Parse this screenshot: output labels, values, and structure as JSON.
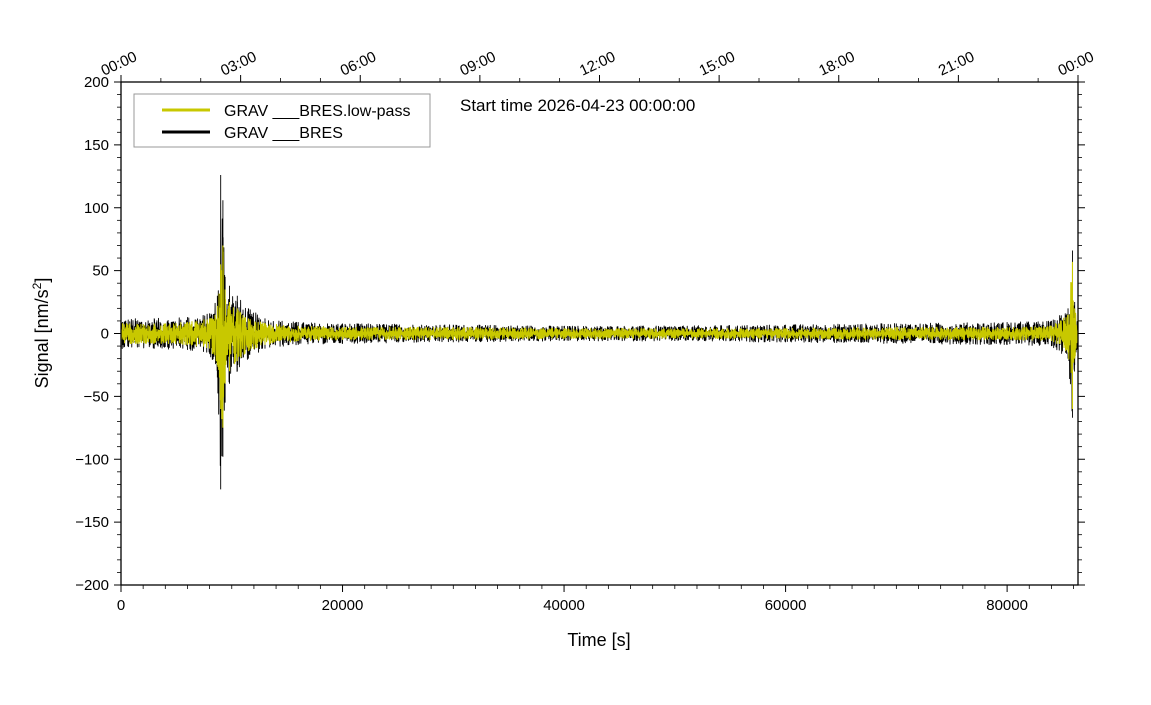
{
  "chart_data": {
    "type": "line",
    "title": "Start time 2026-04-23 00:00:00",
    "xlabel": "Time [s]",
    "ylabel_main": "Signal [nm/s",
    "ylabel_sup": "2",
    "ylabel_end": "]",
    "xlim": [
      0,
      86400
    ],
    "ylim": [
      -200,
      200
    ],
    "x_ticks": [
      0,
      20000,
      40000,
      60000,
      80000
    ],
    "x_tick_labels": [
      "0",
      "20000",
      "40000",
      "60000",
      "80000"
    ],
    "y_ticks": [
      -200,
      -150,
      -100,
      -50,
      0,
      50,
      100,
      150,
      200
    ],
    "y_tick_labels": [
      "−200",
      "−150",
      "−100",
      "−50",
      "0",
      "50",
      "100",
      "150",
      "200"
    ],
    "top_axis": {
      "ticks": [
        0,
        10800,
        21600,
        32400,
        43200,
        54000,
        64800,
        75600,
        86400
      ],
      "labels": [
        "00:00",
        "03:00",
        "06:00",
        "09:00",
        "12:00",
        "15:00",
        "18:00",
        "21:00",
        "00:00"
      ]
    },
    "grid": false,
    "legend_position": "top-left",
    "series": [
      {
        "name": "GRAV ___BRES.low-pass",
        "color": "#c8c800",
        "envelope": {
          "x": [
            0,
            3000,
            6000,
            8000,
            8700,
            9000,
            9200,
            9400,
            9800,
            10500,
            11500,
            13000,
            16000,
            20000,
            30000,
            40000,
            50000,
            60000,
            70000,
            80000,
            84000,
            85500,
            85900,
            86100,
            86400
          ],
          "upper": [
            8,
            8,
            9,
            12,
            22,
            55,
            70,
            35,
            25,
            20,
            12,
            8,
            6,
            5,
            5,
            4,
            4,
            4,
            5,
            5,
            6,
            15,
            57,
            20,
            8
          ],
          "lower": [
            -8,
            -8,
            -9,
            -12,
            -25,
            -60,
            -75,
            -40,
            -30,
            -22,
            -14,
            -9,
            -6,
            -5,
            -5,
            -4,
            -4,
            -4,
            -5,
            -5,
            -6,
            -15,
            -60,
            -20,
            -8
          ]
        }
      },
      {
        "name": "GRAV ___BRES",
        "color": "#000000",
        "envelope": {
          "x": [
            0,
            3000,
            6000,
            8000,
            8700,
            9000,
            9200,
            9400,
            9800,
            10500,
            11500,
            13000,
            16000,
            20000,
            30000,
            40000,
            50000,
            60000,
            70000,
            80000,
            84000,
            85500,
            85900,
            86100,
            86400
          ],
          "upper": [
            12,
            12,
            13,
            16,
            30,
            126,
            106,
            45,
            38,
            30,
            20,
            12,
            9,
            8,
            7,
            6,
            6,
            7,
            8,
            9,
            10,
            20,
            66,
            25,
            12
          ],
          "lower": [
            -12,
            -12,
            -13,
            -16,
            -35,
            -124,
            -98,
            -55,
            -40,
            -30,
            -20,
            -12,
            -9,
            -8,
            -7,
            -6,
            -6,
            -7,
            -8,
            -9,
            -10,
            -20,
            -67,
            -25,
            -12
          ]
        }
      }
    ]
  }
}
